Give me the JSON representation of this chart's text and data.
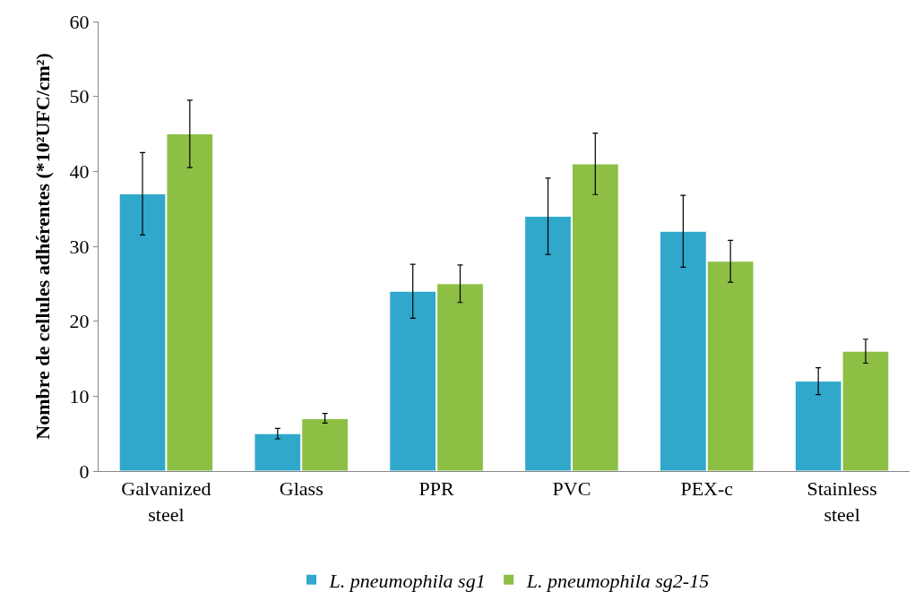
{
  "chart_data": {
    "type": "bar",
    "ylabel": "Nombre de cellules adhérentes (*10²UFC/cm²)",
    "categories": [
      "Galvanized steel",
      "Glass",
      "PPR",
      "PVC",
      "PEX-c",
      "Stainless steel"
    ],
    "series": [
      {
        "name": "L. pneumophila sg1",
        "color": "#2fa8cc",
        "values": [
          37,
          5,
          24,
          34,
          32,
          12
        ],
        "errors": [
          [
            31.5,
            42.5
          ],
          [
            4.3,
            5.7
          ],
          [
            20.4,
            27.6
          ],
          [
            28.9,
            39.1
          ],
          [
            27.2,
            36.8
          ],
          [
            10.2,
            13.8
          ]
        ]
      },
      {
        "name": "L. pneumophila sg2-15",
        "color": "#8cbf44",
        "values": [
          45,
          7,
          25,
          41,
          28,
          16
        ],
        "errors": [
          [
            40.5,
            49.5
          ],
          [
            6.4,
            7.7
          ],
          [
            22.5,
            27.5
          ],
          [
            36.9,
            45.1
          ],
          [
            25.2,
            30.8
          ],
          [
            14.4,
            17.6
          ]
        ]
      }
    ],
    "ylim": [
      0,
      60
    ],
    "yticks": [
      0,
      10,
      20,
      30,
      40,
      50,
      60
    ],
    "legend": "bottom"
  }
}
